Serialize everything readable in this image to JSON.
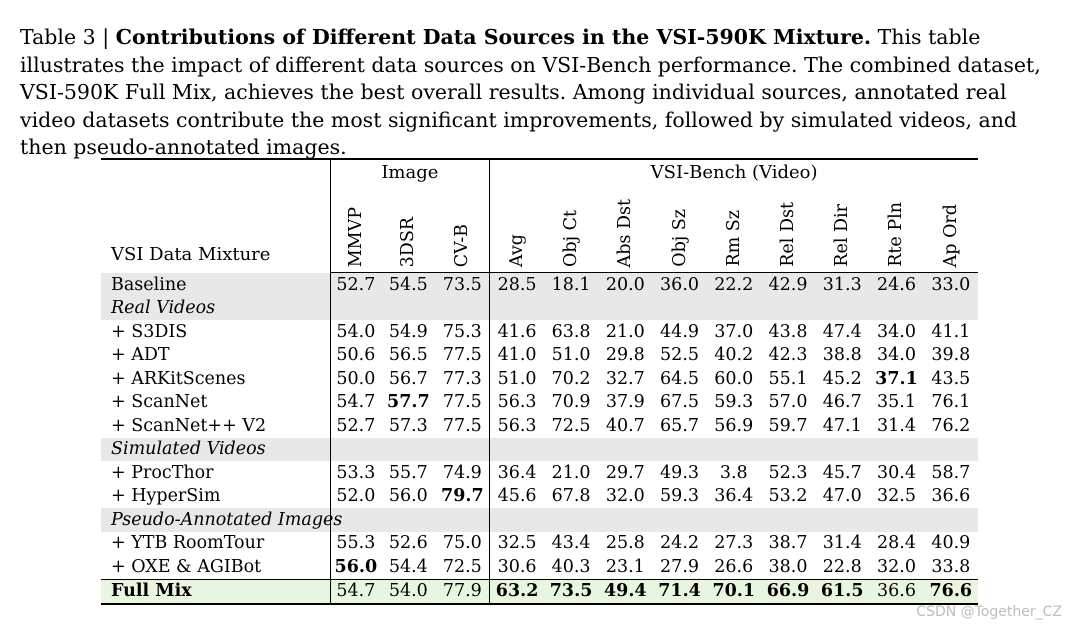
{
  "caption": {
    "label": "Table 3 | ",
    "title": "Contributions of Different Data Sources in the VSI-590K Mixture.",
    "body": " This table illustrates the impact of different data sources on VSI-Bench performance. The combined dataset, VSI-590K Full Mix, achieves the best overall results. Among individual sources, annotated real video datasets contribute the most significant improvements, followed by simulated videos, and then pseudo-annotated images."
  },
  "table": {
    "row_header": "VSI Data Mixture",
    "group_image": "Image",
    "group_video": "VSI-Bench (Video)",
    "columns": [
      "MMVP",
      "3DSR",
      "CV-B",
      "Avg",
      "Obj Ct",
      "Abs Dst",
      "Obj Sz",
      "Rm Sz",
      "Rel Dst",
      "Rel Dir",
      "Rte Pln",
      "Ap Ord"
    ],
    "baseline": {
      "label": "Baseline",
      "values": [
        "52.7",
        "54.5",
        "73.5",
        "28.5",
        "18.1",
        "20.0",
        "36.0",
        "22.2",
        "42.9",
        "31.3",
        "24.6",
        "33.0"
      ]
    },
    "groups": [
      {
        "name": "Real Videos",
        "rows": [
          {
            "label": "+ S3DIS",
            "values": [
              "54.0",
              "54.9",
              "75.3",
              "41.6",
              "63.8",
              "21.0",
              "44.9",
              "37.0",
              "43.8",
              "47.4",
              "34.0",
              "41.1"
            ]
          },
          {
            "label": "+ ADT",
            "values": [
              "50.6",
              "56.5",
              "77.5",
              "41.0",
              "51.0",
              "29.8",
              "52.5",
              "40.2",
              "42.3",
              "38.8",
              "34.0",
              "39.8"
            ]
          },
          {
            "label": "+ ARKitScenes",
            "values": [
              "50.0",
              "56.7",
              "77.3",
              "51.0",
              "70.2",
              "32.7",
              "64.5",
              "60.0",
              "55.1",
              "45.2",
              "37.1",
              "43.5"
            ]
          },
          {
            "label": "+ ScanNet",
            "values": [
              "54.7",
              "57.7",
              "77.5",
              "56.3",
              "70.9",
              "37.9",
              "67.5",
              "59.3",
              "57.0",
              "46.7",
              "35.1",
              "76.1"
            ]
          },
          {
            "label": "+ ScanNet++ V2",
            "values": [
              "52.7",
              "57.3",
              "77.5",
              "56.3",
              "72.5",
              "40.7",
              "65.7",
              "56.9",
              "59.7",
              "47.1",
              "31.4",
              "76.2"
            ]
          }
        ]
      },
      {
        "name": "Simulated Videos",
        "rows": [
          {
            "label": "+ ProcThor",
            "values": [
              "53.3",
              "55.7",
              "74.9",
              "36.4",
              "21.0",
              "29.7",
              "49.3",
              "3.8",
              "52.3",
              "45.7",
              "30.4",
              "58.7"
            ]
          },
          {
            "label": "+ HyperSim",
            "values": [
              "52.0",
              "56.0",
              "79.7",
              "45.6",
              "67.8",
              "32.0",
              "59.3",
              "36.4",
              "53.2",
              "47.0",
              "32.5",
              "36.6"
            ]
          }
        ]
      },
      {
        "name": "Pseudo-Annotated Images",
        "rows": [
          {
            "label": "+ YTB RoomTour",
            "values": [
              "55.3",
              "52.6",
              "75.0",
              "32.5",
              "43.4",
              "25.8",
              "24.2",
              "27.3",
              "38.7",
              "31.4",
              "28.4",
              "40.9"
            ]
          },
          {
            "label": "+ OXE & AGIBot",
            "values": [
              "56.0",
              "54.4",
              "72.5",
              "30.6",
              "40.3",
              "23.1",
              "27.9",
              "26.6",
              "38.0",
              "22.8",
              "32.0",
              "33.8"
            ]
          }
        ]
      }
    ],
    "full_mix": {
      "label": "Full Mix",
      "values": [
        "54.7",
        "54.0",
        "77.9",
        "63.2",
        "73.5",
        "49.4",
        "71.4",
        "70.1",
        "66.9",
        "61.5",
        "36.6",
        "76.6"
      ]
    }
  },
  "watermark": "CSDN @Together_CZ"
}
